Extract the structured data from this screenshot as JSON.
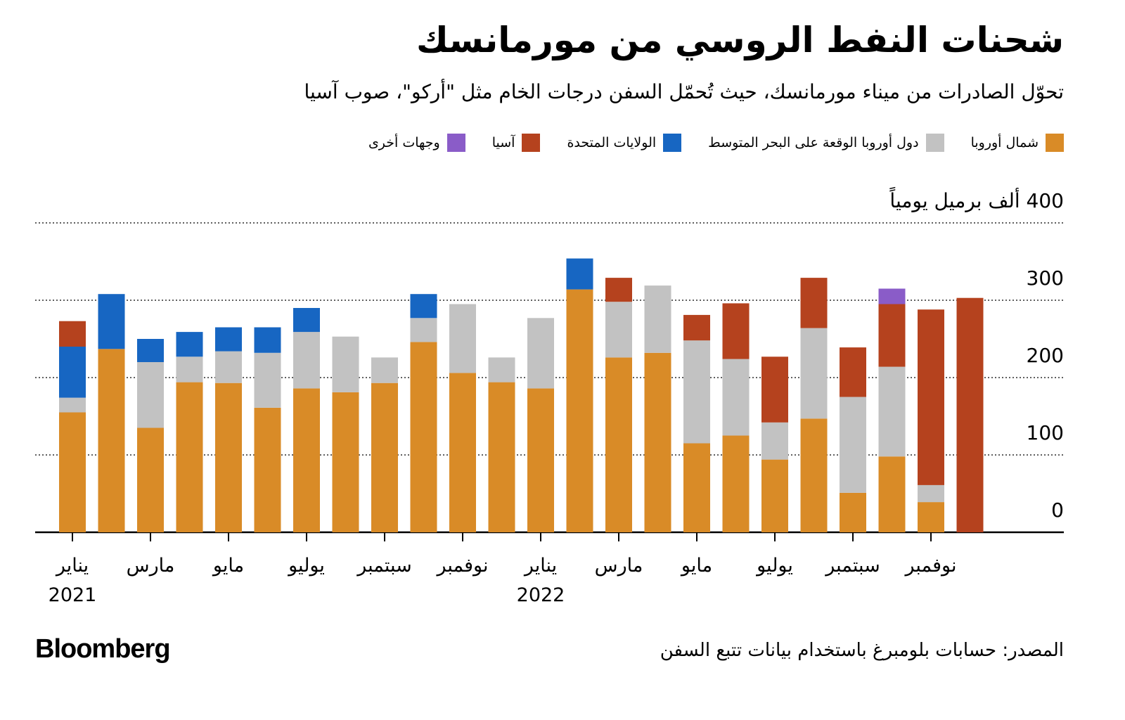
{
  "chart_data": {
    "type": "stacked_bar",
    "title": "شحنات النفط الروسي من مورمانسك",
    "subtitle": "تحوّل الصادرات من ميناء مورمانسك، حيث تُحمّل السفن درجات الخام مثل \"أركو\"، صوب آسيا",
    "source": "المصدر: حسابات بلومبرغ باستخدام بيانات تتبع السفن",
    "brand": "Bloomberg",
    "categories": [
      "يناير 2021",
      null,
      "مارس",
      null,
      "مايو",
      null,
      "يوليو",
      null,
      "سبتمبر",
      null,
      "نوفمبر",
      null,
      "يناير 2022",
      null,
      "مارس",
      null,
      "مايو",
      null,
      "يوليو",
      null,
      "سبتمبر",
      null,
      "نوفمبر",
      null
    ],
    "series": [
      {
        "name": "شمال أوروبا",
        "color": "#d98b27",
        "values": [
          155,
          237,
          135,
          194,
          193,
          161,
          186,
          181,
          193,
          246,
          206,
          194,
          186,
          314,
          226,
          232,
          115,
          125,
          94,
          147,
          51,
          98,
          39,
          null
        ]
      },
      {
        "name": "دول أوروبا الوقعة على البحر المتوسط",
        "color": "#c2c2c2",
        "values": [
          19,
          null,
          85,
          33,
          41,
          71,
          73,
          72,
          33,
          31,
          89,
          32,
          91,
          null,
          72,
          87,
          133,
          99,
          48,
          117,
          124,
          116,
          22,
          null
        ]
      },
      {
        "name": "الولايات المتحدة",
        "color": "#1766c2",
        "values": [
          66,
          71,
          30,
          32,
          31,
          33,
          31,
          null,
          null,
          31,
          null,
          null,
          null,
          40,
          null,
          null,
          null,
          null,
          null,
          null,
          null,
          null,
          null,
          null
        ]
      },
      {
        "name": "آسيا",
        "color": "#b5421e",
        "values": [
          33,
          null,
          null,
          null,
          null,
          null,
          null,
          null,
          null,
          null,
          null,
          null,
          null,
          null,
          31,
          null,
          33,
          72,
          85,
          65,
          64,
          81,
          227,
          303
        ]
      },
      {
        "name": "وجهات أخرى",
        "color": "#8a5cc8",
        "values": [
          null,
          null,
          null,
          null,
          null,
          null,
          null,
          null,
          null,
          null,
          null,
          null,
          null,
          null,
          null,
          null,
          null,
          null,
          null,
          null,
          null,
          20,
          null,
          null
        ]
      }
    ],
    "ylim": [
      0,
      400
    ],
    "yticks": [
      0,
      100,
      200,
      300,
      {
        "value": 400,
        "label": "400 ألف برميل يومياً"
      }
    ],
    "grid": true
  }
}
